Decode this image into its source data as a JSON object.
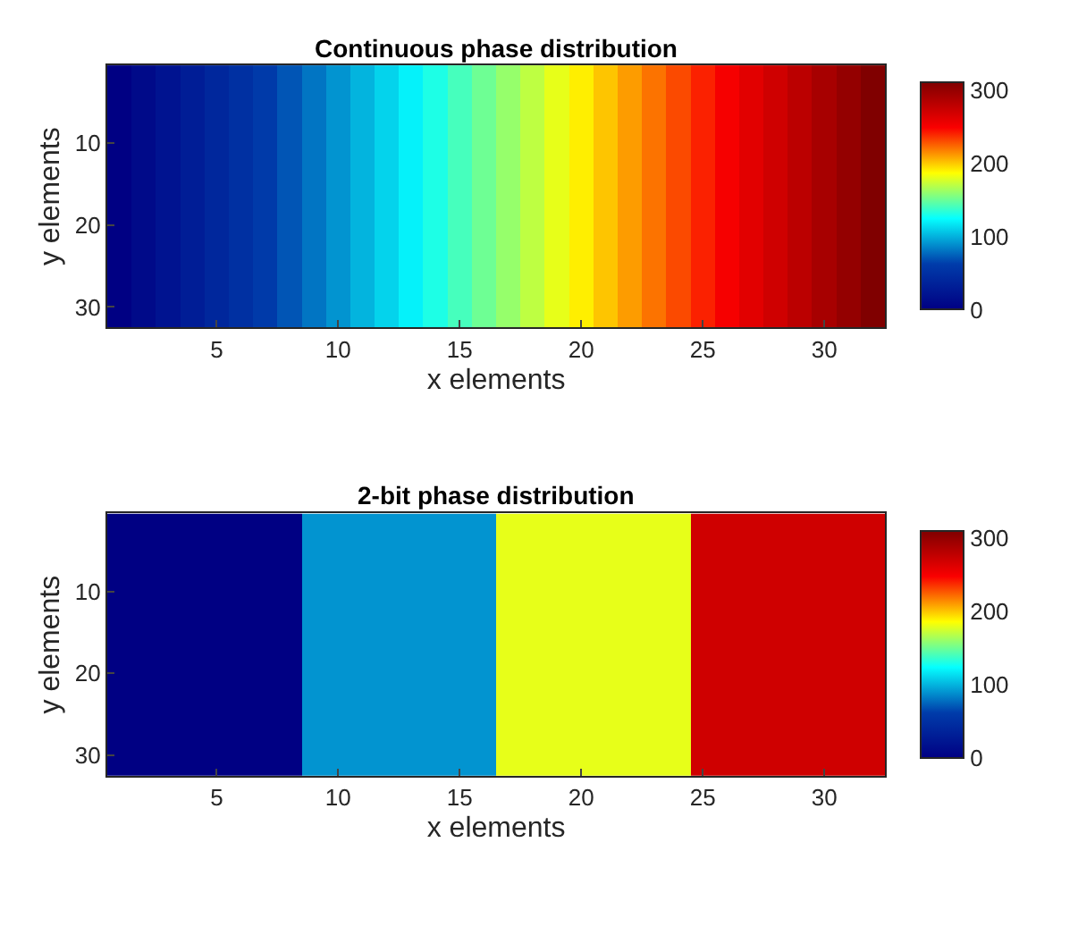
{
  "chart_data": [
    {
      "type": "heatmap",
      "title": "Continuous phase distribution",
      "xlabel": "x elements",
      "ylabel": "y elements",
      "categories": [
        null,
        null,
        null,
        null,
        "5",
        null,
        null,
        null,
        null,
        "10",
        null,
        null,
        null,
        null,
        "15",
        null,
        null,
        null,
        null,
        "20",
        null,
        null,
        null,
        null,
        "25",
        null,
        null,
        null,
        null,
        "30",
        null,
        null
      ],
      "y_categories": [
        null,
        null,
        null,
        null,
        null,
        null,
        null,
        null,
        null,
        "10",
        null,
        null,
        null,
        null,
        null,
        null,
        null,
        null,
        null,
        "20",
        null,
        null,
        null,
        null,
        null,
        null,
        null,
        null,
        null,
        "30",
        null,
        null
      ],
      "cells": [
        [
          0,
          10,
          20,
          30,
          40,
          50,
          60,
          70,
          80,
          90,
          100,
          110,
          120,
          130,
          140,
          150,
          160,
          170,
          180,
          190,
          200,
          210,
          220,
          230,
          240,
          250,
          260,
          270,
          280,
          290,
          300,
          310
        ],
        [
          0,
          10,
          20,
          30,
          40,
          50,
          60,
          70,
          80,
          90,
          100,
          110,
          120,
          130,
          140,
          150,
          160,
          170,
          180,
          190,
          200,
          210,
          220,
          230,
          240,
          250,
          260,
          270,
          280,
          290,
          300,
          310
        ],
        [
          0,
          10,
          20,
          30,
          40,
          50,
          60,
          70,
          80,
          90,
          100,
          110,
          120,
          130,
          140,
          150,
          160,
          170,
          180,
          190,
          200,
          210,
          220,
          230,
          240,
          250,
          260,
          270,
          280,
          290,
          300,
          310
        ],
        [
          0,
          10,
          20,
          30,
          40,
          50,
          60,
          70,
          80,
          90,
          100,
          110,
          120,
          130,
          140,
          150,
          160,
          170,
          180,
          190,
          200,
          210,
          220,
          230,
          240,
          250,
          260,
          270,
          280,
          290,
          300,
          310
        ],
        [
          0,
          10,
          20,
          30,
          40,
          50,
          60,
          70,
          80,
          90,
          100,
          110,
          120,
          130,
          140,
          150,
          160,
          170,
          180,
          190,
          200,
          210,
          220,
          230,
          240,
          250,
          260,
          270,
          280,
          290,
          300,
          310
        ],
        [
          0,
          10,
          20,
          30,
          40,
          50,
          60,
          70,
          80,
          90,
          100,
          110,
          120,
          130,
          140,
          150,
          160,
          170,
          180,
          190,
          200,
          210,
          220,
          230,
          240,
          250,
          260,
          270,
          280,
          290,
          300,
          310
        ],
        [
          0,
          10,
          20,
          30,
          40,
          50,
          60,
          70,
          80,
          90,
          100,
          110,
          120,
          130,
          140,
          150,
          160,
          170,
          180,
          190,
          200,
          210,
          220,
          230,
          240,
          250,
          260,
          270,
          280,
          290,
          300,
          310
        ],
        [
          0,
          10,
          20,
          30,
          40,
          50,
          60,
          70,
          80,
          90,
          100,
          110,
          120,
          130,
          140,
          150,
          160,
          170,
          180,
          190,
          200,
          210,
          220,
          230,
          240,
          250,
          260,
          270,
          280,
          290,
          300,
          310
        ],
        [
          0,
          10,
          20,
          30,
          40,
          50,
          60,
          70,
          80,
          90,
          100,
          110,
          120,
          130,
          140,
          150,
          160,
          170,
          180,
          190,
          200,
          210,
          220,
          230,
          240,
          250,
          260,
          270,
          280,
          290,
          300,
          310
        ],
        [
          0,
          10,
          20,
          30,
          40,
          50,
          60,
          70,
          80,
          90,
          100,
          110,
          120,
          130,
          140,
          150,
          160,
          170,
          180,
          190,
          200,
          210,
          220,
          230,
          240,
          250,
          260,
          270,
          280,
          290,
          300,
          310
        ],
        [
          0,
          10,
          20,
          30,
          40,
          50,
          60,
          70,
          80,
          90,
          100,
          110,
          120,
          130,
          140,
          150,
          160,
          170,
          180,
          190,
          200,
          210,
          220,
          230,
          240,
          250,
          260,
          270,
          280,
          290,
          300,
          310
        ],
        [
          0,
          10,
          20,
          30,
          40,
          50,
          60,
          70,
          80,
          90,
          100,
          110,
          120,
          130,
          140,
          150,
          160,
          170,
          180,
          190,
          200,
          210,
          220,
          230,
          240,
          250,
          260,
          270,
          280,
          290,
          300,
          310
        ],
        [
          0,
          10,
          20,
          30,
          40,
          50,
          60,
          70,
          80,
          90,
          100,
          110,
          120,
          130,
          140,
          150,
          160,
          170,
          180,
          190,
          200,
          210,
          220,
          230,
          240,
          250,
          260,
          270,
          280,
          290,
          300,
          310
        ],
        [
          0,
          10,
          20,
          30,
          40,
          50,
          60,
          70,
          80,
          90,
          100,
          110,
          120,
          130,
          140,
          150,
          160,
          170,
          180,
          190,
          200,
          210,
          220,
          230,
          240,
          250,
          260,
          270,
          280,
          290,
          300,
          310
        ],
        [
          0,
          10,
          20,
          30,
          40,
          50,
          60,
          70,
          80,
          90,
          100,
          110,
          120,
          130,
          140,
          150,
          160,
          170,
          180,
          190,
          200,
          210,
          220,
          230,
          240,
          250,
          260,
          270,
          280,
          290,
          300,
          310
        ],
        [
          0,
          10,
          20,
          30,
          40,
          50,
          60,
          70,
          80,
          90,
          100,
          110,
          120,
          130,
          140,
          150,
          160,
          170,
          180,
          190,
          200,
          210,
          220,
          230,
          240,
          250,
          260,
          270,
          280,
          290,
          300,
          310
        ],
        [
          0,
          10,
          20,
          30,
          40,
          50,
          60,
          70,
          80,
          90,
          100,
          110,
          120,
          130,
          140,
          150,
          160,
          170,
          180,
          190,
          200,
          210,
          220,
          230,
          240,
          250,
          260,
          270,
          280,
          290,
          300,
          310
        ],
        [
          0,
          10,
          20,
          30,
          40,
          50,
          60,
          70,
          80,
          90,
          100,
          110,
          120,
          130,
          140,
          150,
          160,
          170,
          180,
          190,
          200,
          210,
          220,
          230,
          240,
          250,
          260,
          270,
          280,
          290,
          300,
          310
        ],
        [
          0,
          10,
          20,
          30,
          40,
          50,
          60,
          70,
          80,
          90,
          100,
          110,
          120,
          130,
          140,
          150,
          160,
          170,
          180,
          190,
          200,
          210,
          220,
          230,
          240,
          250,
          260,
          270,
          280,
          290,
          300,
          310
        ],
        [
          0,
          10,
          20,
          30,
          40,
          50,
          60,
          70,
          80,
          90,
          100,
          110,
          120,
          130,
          140,
          150,
          160,
          170,
          180,
          190,
          200,
          210,
          220,
          230,
          240,
          250,
          260,
          270,
          280,
          290,
          300,
          310
        ],
        [
          0,
          10,
          20,
          30,
          40,
          50,
          60,
          70,
          80,
          90,
          100,
          110,
          120,
          130,
          140,
          150,
          160,
          170,
          180,
          190,
          200,
          210,
          220,
          230,
          240,
          250,
          260,
          270,
          280,
          290,
          300,
          310
        ],
        [
          0,
          10,
          20,
          30,
          40,
          50,
          60,
          70,
          80,
          90,
          100,
          110,
          120,
          130,
          140,
          150,
          160,
          170,
          180,
          190,
          200,
          210,
          220,
          230,
          240,
          250,
          260,
          270,
          280,
          290,
          300,
          310
        ],
        [
          0,
          10,
          20,
          30,
          40,
          50,
          60,
          70,
          80,
          90,
          100,
          110,
          120,
          130,
          140,
          150,
          160,
          170,
          180,
          190,
          200,
          210,
          220,
          230,
          240,
          250,
          260,
          270,
          280,
          290,
          300,
          310
        ],
        [
          0,
          10,
          20,
          30,
          40,
          50,
          60,
          70,
          80,
          90,
          100,
          110,
          120,
          130,
          140,
          150,
          160,
          170,
          180,
          190,
          200,
          210,
          220,
          230,
          240,
          250,
          260,
          270,
          280,
          290,
          300,
          310
        ],
        [
          0,
          10,
          20,
          30,
          40,
          50,
          60,
          70,
          80,
          90,
          100,
          110,
          120,
          130,
          140,
          150,
          160,
          170,
          180,
          190,
          200,
          210,
          220,
          230,
          240,
          250,
          260,
          270,
          280,
          290,
          300,
          310
        ],
        [
          0,
          10,
          20,
          30,
          40,
          50,
          60,
          70,
          80,
          90,
          100,
          110,
          120,
          130,
          140,
          150,
          160,
          170,
          180,
          190,
          200,
          210,
          220,
          230,
          240,
          250,
          260,
          270,
          280,
          290,
          300,
          310
        ],
        [
          0,
          10,
          20,
          30,
          40,
          50,
          60,
          70,
          80,
          90,
          100,
          110,
          120,
          130,
          140,
          150,
          160,
          170,
          180,
          190,
          200,
          210,
          220,
          230,
          240,
          250,
          260,
          270,
          280,
          290,
          300,
          310
        ],
        [
          0,
          10,
          20,
          30,
          40,
          50,
          60,
          70,
          80,
          90,
          100,
          110,
          120,
          130,
          140,
          150,
          160,
          170,
          180,
          190,
          200,
          210,
          220,
          230,
          240,
          250,
          260,
          270,
          280,
          290,
          300,
          310
        ],
        [
          0,
          10,
          20,
          30,
          40,
          50,
          60,
          70,
          80,
          90,
          100,
          110,
          120,
          130,
          140,
          150,
          160,
          170,
          180,
          190,
          200,
          210,
          220,
          230,
          240,
          250,
          260,
          270,
          280,
          290,
          300,
          310
        ],
        [
          0,
          10,
          20,
          30,
          40,
          50,
          60,
          70,
          80,
          90,
          100,
          110,
          120,
          130,
          140,
          150,
          160,
          170,
          180,
          190,
          200,
          210,
          220,
          230,
          240,
          250,
          260,
          270,
          280,
          290,
          300,
          310
        ],
        [
          0,
          10,
          20,
          30,
          40,
          50,
          60,
          70,
          80,
          90,
          100,
          110,
          120,
          130,
          140,
          150,
          160,
          170,
          180,
          190,
          200,
          210,
          220,
          230,
          240,
          250,
          260,
          270,
          280,
          290,
          300,
          310
        ],
        [
          0,
          10,
          20,
          30,
          40,
          50,
          60,
          70,
          80,
          90,
          100,
          110,
          120,
          130,
          140,
          150,
          160,
          170,
          180,
          190,
          200,
          210,
          220,
          230,
          240,
          250,
          260,
          270,
          280,
          290,
          300,
          310
        ]
      ],
      "clim": [
        0,
        310
      ],
      "cticks": [
        0,
        100,
        200,
        300
      ]
    },
    {
      "type": "heatmap",
      "title": "2-bit phase distribution",
      "xlabel": "x elements",
      "ylabel": "y elements",
      "categories": [
        null,
        null,
        null,
        null,
        "5",
        null,
        null,
        null,
        null,
        "10",
        null,
        null,
        null,
        null,
        "15",
        null,
        null,
        null,
        null,
        "20",
        null,
        null,
        null,
        null,
        "25",
        null,
        null,
        null,
        null,
        "30",
        null,
        null
      ],
      "y_categories": [
        null,
        null,
        null,
        null,
        null,
        null,
        null,
        null,
        null,
        "10",
        null,
        null,
        null,
        null,
        null,
        null,
        null,
        null,
        null,
        "20",
        null,
        null,
        null,
        null,
        null,
        null,
        null,
        null,
        null,
        "30",
        null,
        null
      ],
      "cells": [
        [
          0,
          0,
          0,
          0,
          0,
          0,
          0,
          0,
          90,
          90,
          90,
          90,
          90,
          90,
          90,
          90,
          180,
          180,
          180,
          180,
          180,
          180,
          180,
          180,
          270,
          270,
          270,
          270,
          270,
          270,
          270,
          270
        ],
        [
          0,
          0,
          0,
          0,
          0,
          0,
          0,
          0,
          90,
          90,
          90,
          90,
          90,
          90,
          90,
          90,
          180,
          180,
          180,
          180,
          180,
          180,
          180,
          180,
          270,
          270,
          270,
          270,
          270,
          270,
          270,
          270
        ],
        [
          0,
          0,
          0,
          0,
          0,
          0,
          0,
          0,
          90,
          90,
          90,
          90,
          90,
          90,
          90,
          90,
          180,
          180,
          180,
          180,
          180,
          180,
          180,
          180,
          270,
          270,
          270,
          270,
          270,
          270,
          270,
          270
        ],
        [
          0,
          0,
          0,
          0,
          0,
          0,
          0,
          0,
          90,
          90,
          90,
          90,
          90,
          90,
          90,
          90,
          180,
          180,
          180,
          180,
          180,
          180,
          180,
          180,
          270,
          270,
          270,
          270,
          270,
          270,
          270,
          270
        ],
        [
          0,
          0,
          0,
          0,
          0,
          0,
          0,
          0,
          90,
          90,
          90,
          90,
          90,
          90,
          90,
          90,
          180,
          180,
          180,
          180,
          180,
          180,
          180,
          180,
          270,
          270,
          270,
          270,
          270,
          270,
          270,
          270
        ],
        [
          0,
          0,
          0,
          0,
          0,
          0,
          0,
          0,
          90,
          90,
          90,
          90,
          90,
          90,
          90,
          90,
          180,
          180,
          180,
          180,
          180,
          180,
          180,
          180,
          270,
          270,
          270,
          270,
          270,
          270,
          270,
          270
        ],
        [
          0,
          0,
          0,
          0,
          0,
          0,
          0,
          0,
          90,
          90,
          90,
          90,
          90,
          90,
          90,
          90,
          180,
          180,
          180,
          180,
          180,
          180,
          180,
          180,
          270,
          270,
          270,
          270,
          270,
          270,
          270,
          270
        ],
        [
          0,
          0,
          0,
          0,
          0,
          0,
          0,
          0,
          90,
          90,
          90,
          90,
          90,
          90,
          90,
          90,
          180,
          180,
          180,
          180,
          180,
          180,
          180,
          180,
          270,
          270,
          270,
          270,
          270,
          270,
          270,
          270
        ],
        [
          0,
          0,
          0,
          0,
          0,
          0,
          0,
          0,
          90,
          90,
          90,
          90,
          90,
          90,
          90,
          90,
          180,
          180,
          180,
          180,
          180,
          180,
          180,
          180,
          270,
          270,
          270,
          270,
          270,
          270,
          270,
          270
        ],
        [
          0,
          0,
          0,
          0,
          0,
          0,
          0,
          0,
          90,
          90,
          90,
          90,
          90,
          90,
          90,
          90,
          180,
          180,
          180,
          180,
          180,
          180,
          180,
          180,
          270,
          270,
          270,
          270,
          270,
          270,
          270,
          270
        ],
        [
          0,
          0,
          0,
          0,
          0,
          0,
          0,
          0,
          90,
          90,
          90,
          90,
          90,
          90,
          90,
          90,
          180,
          180,
          180,
          180,
          180,
          180,
          180,
          180,
          270,
          270,
          270,
          270,
          270,
          270,
          270,
          270
        ],
        [
          0,
          0,
          0,
          0,
          0,
          0,
          0,
          0,
          90,
          90,
          90,
          90,
          90,
          90,
          90,
          90,
          180,
          180,
          180,
          180,
          180,
          180,
          180,
          180,
          270,
          270,
          270,
          270,
          270,
          270,
          270,
          270
        ],
        [
          0,
          0,
          0,
          0,
          0,
          0,
          0,
          0,
          90,
          90,
          90,
          90,
          90,
          90,
          90,
          90,
          180,
          180,
          180,
          180,
          180,
          180,
          180,
          180,
          270,
          270,
          270,
          270,
          270,
          270,
          270,
          270
        ],
        [
          0,
          0,
          0,
          0,
          0,
          0,
          0,
          0,
          90,
          90,
          90,
          90,
          90,
          90,
          90,
          90,
          180,
          180,
          180,
          180,
          180,
          180,
          180,
          180,
          270,
          270,
          270,
          270,
          270,
          270,
          270,
          270
        ],
        [
          0,
          0,
          0,
          0,
          0,
          0,
          0,
          0,
          90,
          90,
          90,
          90,
          90,
          90,
          90,
          90,
          180,
          180,
          180,
          180,
          180,
          180,
          180,
          180,
          270,
          270,
          270,
          270,
          270,
          270,
          270,
          270
        ],
        [
          0,
          0,
          0,
          0,
          0,
          0,
          0,
          0,
          90,
          90,
          90,
          90,
          90,
          90,
          90,
          90,
          180,
          180,
          180,
          180,
          180,
          180,
          180,
          180,
          270,
          270,
          270,
          270,
          270,
          270,
          270,
          270
        ],
        [
          0,
          0,
          0,
          0,
          0,
          0,
          0,
          0,
          90,
          90,
          90,
          90,
          90,
          90,
          90,
          90,
          180,
          180,
          180,
          180,
          180,
          180,
          180,
          180,
          270,
          270,
          270,
          270,
          270,
          270,
          270,
          270
        ],
        [
          0,
          0,
          0,
          0,
          0,
          0,
          0,
          0,
          90,
          90,
          90,
          90,
          90,
          90,
          90,
          90,
          180,
          180,
          180,
          180,
          180,
          180,
          180,
          180,
          270,
          270,
          270,
          270,
          270,
          270,
          270,
          270
        ],
        [
          0,
          0,
          0,
          0,
          0,
          0,
          0,
          0,
          90,
          90,
          90,
          90,
          90,
          90,
          90,
          90,
          180,
          180,
          180,
          180,
          180,
          180,
          180,
          180,
          270,
          270,
          270,
          270,
          270,
          270,
          270,
          270
        ],
        [
          0,
          0,
          0,
          0,
          0,
          0,
          0,
          0,
          90,
          90,
          90,
          90,
          90,
          90,
          90,
          90,
          180,
          180,
          180,
          180,
          180,
          180,
          180,
          180,
          270,
          270,
          270,
          270,
          270,
          270,
          270,
          270
        ],
        [
          0,
          0,
          0,
          0,
          0,
          0,
          0,
          0,
          90,
          90,
          90,
          90,
          90,
          90,
          90,
          90,
          180,
          180,
          180,
          180,
          180,
          180,
          180,
          180,
          270,
          270,
          270,
          270,
          270,
          270,
          270,
          270
        ],
        [
          0,
          0,
          0,
          0,
          0,
          0,
          0,
          0,
          90,
          90,
          90,
          90,
          90,
          90,
          90,
          90,
          180,
          180,
          180,
          180,
          180,
          180,
          180,
          180,
          270,
          270,
          270,
          270,
          270,
          270,
          270,
          270
        ],
        [
          0,
          0,
          0,
          0,
          0,
          0,
          0,
          0,
          90,
          90,
          90,
          90,
          90,
          90,
          90,
          90,
          180,
          180,
          180,
          180,
          180,
          180,
          180,
          180,
          270,
          270,
          270,
          270,
          270,
          270,
          270,
          270
        ],
        [
          0,
          0,
          0,
          0,
          0,
          0,
          0,
          0,
          90,
          90,
          90,
          90,
          90,
          90,
          90,
          90,
          180,
          180,
          180,
          180,
          180,
          180,
          180,
          180,
          270,
          270,
          270,
          270,
          270,
          270,
          270,
          270
        ],
        [
          0,
          0,
          0,
          0,
          0,
          0,
          0,
          0,
          90,
          90,
          90,
          90,
          90,
          90,
          90,
          90,
          180,
          180,
          180,
          180,
          180,
          180,
          180,
          180,
          270,
          270,
          270,
          270,
          270,
          270,
          270,
          270
        ],
        [
          0,
          0,
          0,
          0,
          0,
          0,
          0,
          0,
          90,
          90,
          90,
          90,
          90,
          90,
          90,
          90,
          180,
          180,
          180,
          180,
          180,
          180,
          180,
          180,
          270,
          270,
          270,
          270,
          270,
          270,
          270,
          270
        ],
        [
          0,
          0,
          0,
          0,
          0,
          0,
          0,
          0,
          90,
          90,
          90,
          90,
          90,
          90,
          90,
          90,
          180,
          180,
          180,
          180,
          180,
          180,
          180,
          180,
          270,
          270,
          270,
          270,
          270,
          270,
          270,
          270
        ],
        [
          0,
          0,
          0,
          0,
          0,
          0,
          0,
          0,
          90,
          90,
          90,
          90,
          90,
          90,
          90,
          90,
          180,
          180,
          180,
          180,
          180,
          180,
          180,
          180,
          270,
          270,
          270,
          270,
          270,
          270,
          270,
          270
        ],
        [
          0,
          0,
          0,
          0,
          0,
          0,
          0,
          0,
          90,
          90,
          90,
          90,
          90,
          90,
          90,
          90,
          180,
          180,
          180,
          180,
          180,
          180,
          180,
          180,
          270,
          270,
          270,
          270,
          270,
          270,
          270,
          270
        ],
        [
          0,
          0,
          0,
          0,
          0,
          0,
          0,
          0,
          90,
          90,
          90,
          90,
          90,
          90,
          90,
          90,
          180,
          180,
          180,
          180,
          180,
          180,
          180,
          180,
          270,
          270,
          270,
          270,
          270,
          270,
          270,
          270
        ],
        [
          0,
          0,
          0,
          0,
          0,
          0,
          0,
          0,
          90,
          90,
          90,
          90,
          90,
          90,
          90,
          90,
          180,
          180,
          180,
          180,
          180,
          180,
          180,
          180,
          270,
          270,
          270,
          270,
          270,
          270,
          270,
          270
        ],
        [
          0,
          0,
          0,
          0,
          0,
          0,
          0,
          0,
          90,
          90,
          90,
          90,
          90,
          90,
          90,
          90,
          180,
          180,
          180,
          180,
          180,
          180,
          180,
          180,
          270,
          270,
          270,
          270,
          270,
          270,
          270,
          270
        ]
      ],
      "clim": [
        0,
        310
      ],
      "cticks": [
        0,
        100,
        200,
        300
      ]
    }
  ]
}
